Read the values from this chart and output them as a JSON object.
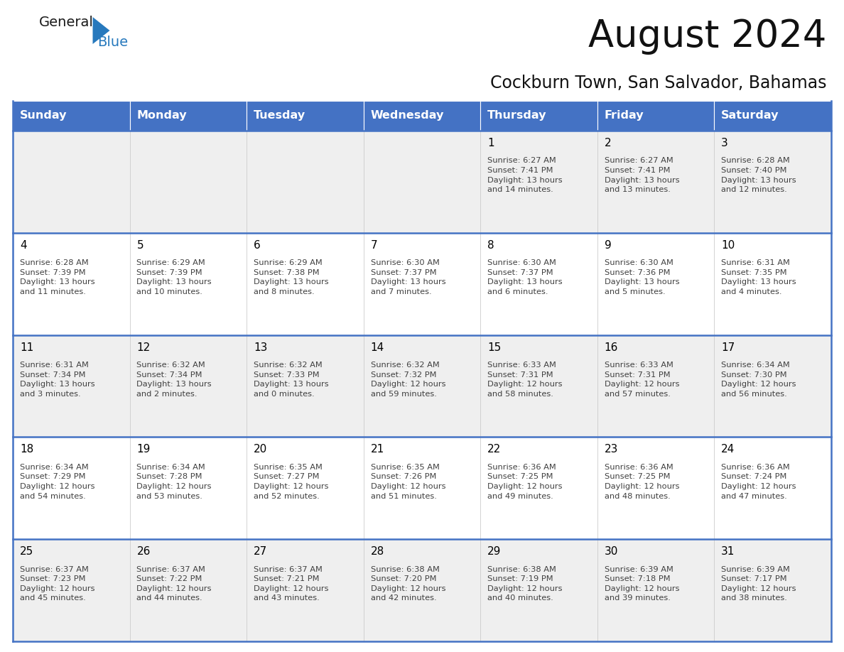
{
  "title": "August 2024",
  "subtitle": "Cockburn Town, San Salvador, Bahamas",
  "header_bg": "#4472C4",
  "header_text_color": "#FFFFFF",
  "days_of_week": [
    "Sunday",
    "Monday",
    "Tuesday",
    "Wednesday",
    "Thursday",
    "Friday",
    "Saturday"
  ],
  "row_bg": [
    "#EFEFEF",
    "#FFFFFF",
    "#EFEFEF",
    "#FFFFFF",
    "#EFEFEF"
  ],
  "cell_border_color": "#4472C4",
  "cell_divider_color": "#CCCCCC",
  "day_number_color": "#000000",
  "content_text_color": "#404040",
  "calendar_data": [
    [
      {
        "day": "",
        "content": ""
      },
      {
        "day": "",
        "content": ""
      },
      {
        "day": "",
        "content": ""
      },
      {
        "day": "",
        "content": ""
      },
      {
        "day": "1",
        "content": "Sunrise: 6:27 AM\nSunset: 7:41 PM\nDaylight: 13 hours\nand 14 minutes."
      },
      {
        "day": "2",
        "content": "Sunrise: 6:27 AM\nSunset: 7:41 PM\nDaylight: 13 hours\nand 13 minutes."
      },
      {
        "day": "3",
        "content": "Sunrise: 6:28 AM\nSunset: 7:40 PM\nDaylight: 13 hours\nand 12 minutes."
      }
    ],
    [
      {
        "day": "4",
        "content": "Sunrise: 6:28 AM\nSunset: 7:39 PM\nDaylight: 13 hours\nand 11 minutes."
      },
      {
        "day": "5",
        "content": "Sunrise: 6:29 AM\nSunset: 7:39 PM\nDaylight: 13 hours\nand 10 minutes."
      },
      {
        "day": "6",
        "content": "Sunrise: 6:29 AM\nSunset: 7:38 PM\nDaylight: 13 hours\nand 8 minutes."
      },
      {
        "day": "7",
        "content": "Sunrise: 6:30 AM\nSunset: 7:37 PM\nDaylight: 13 hours\nand 7 minutes."
      },
      {
        "day": "8",
        "content": "Sunrise: 6:30 AM\nSunset: 7:37 PM\nDaylight: 13 hours\nand 6 minutes."
      },
      {
        "day": "9",
        "content": "Sunrise: 6:30 AM\nSunset: 7:36 PM\nDaylight: 13 hours\nand 5 minutes."
      },
      {
        "day": "10",
        "content": "Sunrise: 6:31 AM\nSunset: 7:35 PM\nDaylight: 13 hours\nand 4 minutes."
      }
    ],
    [
      {
        "day": "11",
        "content": "Sunrise: 6:31 AM\nSunset: 7:34 PM\nDaylight: 13 hours\nand 3 minutes."
      },
      {
        "day": "12",
        "content": "Sunrise: 6:32 AM\nSunset: 7:34 PM\nDaylight: 13 hours\nand 2 minutes."
      },
      {
        "day": "13",
        "content": "Sunrise: 6:32 AM\nSunset: 7:33 PM\nDaylight: 13 hours\nand 0 minutes."
      },
      {
        "day": "14",
        "content": "Sunrise: 6:32 AM\nSunset: 7:32 PM\nDaylight: 12 hours\nand 59 minutes."
      },
      {
        "day": "15",
        "content": "Sunrise: 6:33 AM\nSunset: 7:31 PM\nDaylight: 12 hours\nand 58 minutes."
      },
      {
        "day": "16",
        "content": "Sunrise: 6:33 AM\nSunset: 7:31 PM\nDaylight: 12 hours\nand 57 minutes."
      },
      {
        "day": "17",
        "content": "Sunrise: 6:34 AM\nSunset: 7:30 PM\nDaylight: 12 hours\nand 56 minutes."
      }
    ],
    [
      {
        "day": "18",
        "content": "Sunrise: 6:34 AM\nSunset: 7:29 PM\nDaylight: 12 hours\nand 54 minutes."
      },
      {
        "day": "19",
        "content": "Sunrise: 6:34 AM\nSunset: 7:28 PM\nDaylight: 12 hours\nand 53 minutes."
      },
      {
        "day": "20",
        "content": "Sunrise: 6:35 AM\nSunset: 7:27 PM\nDaylight: 12 hours\nand 52 minutes."
      },
      {
        "day": "21",
        "content": "Sunrise: 6:35 AM\nSunset: 7:26 PM\nDaylight: 12 hours\nand 51 minutes."
      },
      {
        "day": "22",
        "content": "Sunrise: 6:36 AM\nSunset: 7:25 PM\nDaylight: 12 hours\nand 49 minutes."
      },
      {
        "day": "23",
        "content": "Sunrise: 6:36 AM\nSunset: 7:25 PM\nDaylight: 12 hours\nand 48 minutes."
      },
      {
        "day": "24",
        "content": "Sunrise: 6:36 AM\nSunset: 7:24 PM\nDaylight: 12 hours\nand 47 minutes."
      }
    ],
    [
      {
        "day": "25",
        "content": "Sunrise: 6:37 AM\nSunset: 7:23 PM\nDaylight: 12 hours\nand 45 minutes."
      },
      {
        "day": "26",
        "content": "Sunrise: 6:37 AM\nSunset: 7:22 PM\nDaylight: 12 hours\nand 44 minutes."
      },
      {
        "day": "27",
        "content": "Sunrise: 6:37 AM\nSunset: 7:21 PM\nDaylight: 12 hours\nand 43 minutes."
      },
      {
        "day": "28",
        "content": "Sunrise: 6:38 AM\nSunset: 7:20 PM\nDaylight: 12 hours\nand 42 minutes."
      },
      {
        "day": "29",
        "content": "Sunrise: 6:38 AM\nSunset: 7:19 PM\nDaylight: 12 hours\nand 40 minutes."
      },
      {
        "day": "30",
        "content": "Sunrise: 6:39 AM\nSunset: 7:18 PM\nDaylight: 12 hours\nand 39 minutes."
      },
      {
        "day": "31",
        "content": "Sunrise: 6:39 AM\nSunset: 7:17 PM\nDaylight: 12 hours\nand 38 minutes."
      }
    ]
  ],
  "logo_general_color": "#1a1a1a",
  "logo_blue_color": "#2779BD",
  "logo_triangle_color": "#2779BD",
  "fig_width": 11.88,
  "fig_height": 9.18,
  "dpi": 100
}
